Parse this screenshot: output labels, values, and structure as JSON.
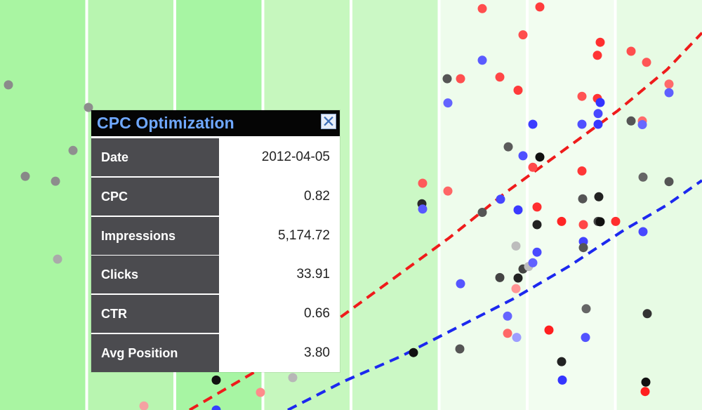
{
  "chart_data": {
    "type": "scatter",
    "bands": [
      {
        "color": "#a9f5a2"
      },
      {
        "color": "#b8f5b0"
      },
      {
        "color": "#a7f5a3"
      },
      {
        "color": "#c6f7be"
      },
      {
        "color": "#cbf8c5"
      },
      {
        "color": "#eefcec"
      },
      {
        "color": "#f2fdf0"
      },
      {
        "color": "#e7fbe4"
      }
    ],
    "points": [
      {
        "x": 0.012,
        "y": 0.207,
        "color": "#8b8b8b"
      },
      {
        "x": 0.036,
        "y": 0.43,
        "color": "#888888"
      },
      {
        "x": 0.079,
        "y": 0.442,
        "color": "#8d8d8d"
      },
      {
        "x": 0.104,
        "y": 0.367,
        "color": "#8f8f8f"
      },
      {
        "x": 0.126,
        "y": 0.262,
        "color": "#8d8d8d"
      },
      {
        "x": 0.082,
        "y": 0.632,
        "color": "#aaaaaa"
      },
      {
        "x": 0.308,
        "y": 0.927,
        "color": "#111111"
      },
      {
        "x": 0.371,
        "y": 0.957,
        "color": "#ff8b8b"
      },
      {
        "x": 0.417,
        "y": 0.921,
        "color": "#b7b7b7"
      },
      {
        "x": 0.205,
        "y": 0.99,
        "color": "#f4a2a2"
      },
      {
        "x": 0.308,
        "y": 1.0,
        "color": "#3440ff"
      },
      {
        "x": 0.589,
        "y": 0.86,
        "color": "#111111"
      },
      {
        "x": 0.602,
        "y": 0.447,
        "color": "#ff5a5a"
      },
      {
        "x": 0.601,
        "y": 0.497,
        "color": "#2a2a2a"
      },
      {
        "x": 0.602,
        "y": 0.51,
        "color": "#5858ff"
      },
      {
        "x": 0.637,
        "y": 0.192,
        "color": "#555555"
      },
      {
        "x": 0.638,
        "y": 0.251,
        "color": "#6464ff"
      },
      {
        "x": 0.638,
        "y": 0.466,
        "color": "#ff6666"
      },
      {
        "x": 0.656,
        "y": 0.192,
        "color": "#ff4f4f"
      },
      {
        "x": 0.656,
        "y": 0.692,
        "color": "#5555ff"
      },
      {
        "x": 0.655,
        "y": 0.851,
        "color": "#555555"
      },
      {
        "x": 0.687,
        "y": 0.021,
        "color": "#ff4e4e"
      },
      {
        "x": 0.687,
        "y": 0.147,
        "color": "#5b5bff"
      },
      {
        "x": 0.687,
        "y": 0.518,
        "color": "#555555"
      },
      {
        "x": 0.712,
        "y": 0.188,
        "color": "#ff4646"
      },
      {
        "x": 0.713,
        "y": 0.486,
        "color": "#4646ff"
      },
      {
        "x": 0.712,
        "y": 0.677,
        "color": "#444444"
      },
      {
        "x": 0.724,
        "y": 0.358,
        "color": "#5b5b5b"
      },
      {
        "x": 0.723,
        "y": 0.771,
        "color": "#6565ff"
      },
      {
        "x": 0.723,
        "y": 0.813,
        "color": "#ff6868"
      },
      {
        "x": 0.735,
        "y": 0.6,
        "color": "#bdbdbd"
      },
      {
        "x": 0.735,
        "y": 0.704,
        "color": "#ff9494"
      },
      {
        "x": 0.736,
        "y": 0.823,
        "color": "#9d9dff"
      },
      {
        "x": 0.738,
        "y": 0.22,
        "color": "#ff3a3a"
      },
      {
        "x": 0.738,
        "y": 0.512,
        "color": "#3a3aff"
      },
      {
        "x": 0.738,
        "y": 0.678,
        "color": "#222222"
      },
      {
        "x": 0.745,
        "y": 0.085,
        "color": "#ff4e4e"
      },
      {
        "x": 0.745,
        "y": 0.38,
        "color": "#5050ff"
      },
      {
        "x": 0.745,
        "y": 0.656,
        "color": "#444444"
      },
      {
        "x": 0.753,
        "y": 0.65,
        "color": "#bcbcbc"
      },
      {
        "x": 0.759,
        "y": 0.303,
        "color": "#3c3cff"
      },
      {
        "x": 0.759,
        "y": 0.408,
        "color": "#ff4a4a"
      },
      {
        "x": 0.759,
        "y": 0.641,
        "color": "#6262ff"
      },
      {
        "x": 0.765,
        "y": 0.505,
        "color": "#ff2f2f"
      },
      {
        "x": 0.765,
        "y": 0.548,
        "color": "#222222"
      },
      {
        "x": 0.765,
        "y": 0.615,
        "color": "#4a4aff"
      },
      {
        "x": 0.769,
        "y": 0.017,
        "color": "#ff3d3d"
      },
      {
        "x": 0.769,
        "y": 0.383,
        "color": "#111111"
      },
      {
        "x": 0.782,
        "y": 0.805,
        "color": "#ff1f1f"
      },
      {
        "x": 0.8,
        "y": 0.54,
        "color": "#ff2525"
      },
      {
        "x": 0.8,
        "y": 0.882,
        "color": "#222222"
      },
      {
        "x": 0.801,
        "y": 0.927,
        "color": "#3535ff"
      },
      {
        "x": 0.829,
        "y": 0.235,
        "color": "#ff5353"
      },
      {
        "x": 0.829,
        "y": 0.303,
        "color": "#4f4fff"
      },
      {
        "x": 0.829,
        "y": 0.417,
        "color": "#ff3737"
      },
      {
        "x": 0.83,
        "y": 0.485,
        "color": "#555555"
      },
      {
        "x": 0.831,
        "y": 0.548,
        "color": "#ff4747"
      },
      {
        "x": 0.831,
        "y": 0.589,
        "color": "#4242ff"
      },
      {
        "x": 0.831,
        "y": 0.604,
        "color": "#555555"
      },
      {
        "x": 0.835,
        "y": 0.753,
        "color": "#666666"
      },
      {
        "x": 0.834,
        "y": 0.823,
        "color": "#5353ff"
      },
      {
        "x": 0.851,
        "y": 0.135,
        "color": "#ff3434"
      },
      {
        "x": 0.851,
        "y": 0.24,
        "color": "#ff3434"
      },
      {
        "x": 0.852,
        "y": 0.277,
        "color": "#4848ff"
      },
      {
        "x": 0.852,
        "y": 0.303,
        "color": "#3737ff"
      },
      {
        "x": 0.853,
        "y": 0.48,
        "color": "#222222"
      },
      {
        "x": 0.852,
        "y": 0.54,
        "color": "#444444"
      },
      {
        "x": 0.855,
        "y": 0.103,
        "color": "#ff2f2f"
      },
      {
        "x": 0.855,
        "y": 0.25,
        "color": "#3333ff"
      },
      {
        "x": 0.855,
        "y": 0.541,
        "color": "#111111"
      },
      {
        "x": 0.877,
        "y": 0.54,
        "color": "#ff2e2e"
      },
      {
        "x": 0.899,
        "y": 0.125,
        "color": "#ff4e4e"
      },
      {
        "x": 0.899,
        "y": 0.295,
        "color": "#555555"
      },
      {
        "x": 0.915,
        "y": 0.295,
        "color": "#ff6b6b"
      },
      {
        "x": 0.915,
        "y": 0.304,
        "color": "#6767ff"
      },
      {
        "x": 0.916,
        "y": 0.432,
        "color": "#666666"
      },
      {
        "x": 0.916,
        "y": 0.565,
        "color": "#4848ff"
      },
      {
        "x": 0.921,
        "y": 0.152,
        "color": "#ff5656"
      },
      {
        "x": 0.922,
        "y": 0.765,
        "color": "#333333"
      },
      {
        "x": 0.92,
        "y": 0.932,
        "color": "#111111"
      },
      {
        "x": 0.919,
        "y": 0.955,
        "color": "#ff1f1f"
      },
      {
        "x": 0.953,
        "y": 0.205,
        "color": "#ff6a6a"
      },
      {
        "x": 0.953,
        "y": 0.226,
        "color": "#5f5fff"
      },
      {
        "x": 0.953,
        "y": 0.443,
        "color": "#555555"
      }
    ],
    "trend_lines": [
      {
        "color": "#ef1b1b",
        "points": [
          [
            0.27,
            1.0
          ],
          [
            0.33,
            0.94
          ],
          [
            0.4,
            0.87
          ],
          [
            0.48,
            0.78
          ],
          [
            0.56,
            0.68
          ],
          [
            0.64,
            0.58
          ],
          [
            0.72,
            0.47
          ],
          [
            0.8,
            0.37
          ],
          [
            0.88,
            0.27
          ],
          [
            0.95,
            0.17
          ],
          [
            1.0,
            0.08
          ]
        ]
      },
      {
        "color": "#1c28ef",
        "points": [
          [
            0.41,
            1.0
          ],
          [
            0.49,
            0.93
          ],
          [
            0.57,
            0.87
          ],
          [
            0.65,
            0.8
          ],
          [
            0.73,
            0.73
          ],
          [
            0.81,
            0.65
          ],
          [
            0.89,
            0.56
          ],
          [
            0.95,
            0.5
          ],
          [
            1.0,
            0.44
          ]
        ]
      }
    ]
  },
  "tooltip": {
    "title": "CPC Optimization",
    "close_label": "✕",
    "rows": [
      {
        "label": "Date",
        "value": "2012-04-05"
      },
      {
        "label": "CPC",
        "value": "0.82"
      },
      {
        "label": "Impressions",
        "value": "5,174.72"
      },
      {
        "label": "Clicks",
        "value": "33.91"
      },
      {
        "label": "CTR",
        "value": "0.66"
      },
      {
        "label": "Avg Position",
        "value": "3.80"
      }
    ]
  }
}
